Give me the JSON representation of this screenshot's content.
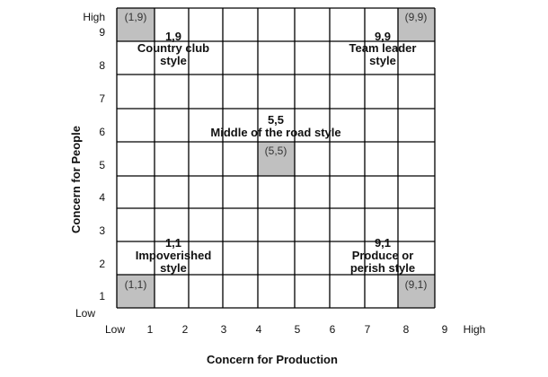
{
  "x_axis": {
    "title": "Concern for Production",
    "ticks": [
      "Low",
      "1",
      "2",
      "3",
      "4",
      "5",
      "6",
      "7",
      "8",
      "9",
      "High"
    ]
  },
  "y_axis": {
    "title": "Concern for People",
    "ticks": [
      "High",
      "9",
      "8",
      "7",
      "6",
      "5",
      "4",
      "3",
      "2",
      "1",
      "Low"
    ]
  },
  "grid": {
    "columns": 9,
    "rows": 9,
    "shade_color": "#c0c0c0",
    "line_color": "#000000"
  },
  "corner_labels": {
    "c19": "(1,9)",
    "c99": "(9,9)",
    "c55": "(5,5)",
    "c11": "(1,1)",
    "c91": "(9,1)"
  },
  "styles": {
    "country_club": {
      "coord": "1,9",
      "line1": "Country club",
      "line2": "style"
    },
    "team_leader": {
      "coord": "9,9",
      "line1": "Team leader",
      "line2": "style"
    },
    "middle_road": {
      "coord": "5,5",
      "line1": "Middle of the road style"
    },
    "impoverished": {
      "coord": "1,1",
      "line1": "Impoverished",
      "line2": "style"
    },
    "produce_perish": {
      "coord": "9,1",
      "line1": "Produce or",
      "line2": "perish style"
    }
  }
}
